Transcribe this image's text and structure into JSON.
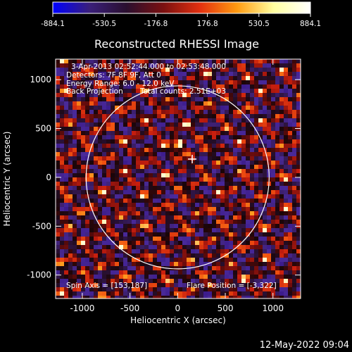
{
  "colorbar": {
    "ticks": [
      "-884.1",
      "-530.5",
      "-176.8",
      "176.8",
      "530.5",
      "884.1"
    ],
    "vmin": -884.1,
    "vmax": 884.1,
    "colors": [
      "#0000ff",
      "#3a1f7a",
      "#2a0f2f",
      "#7a1010",
      "#e23010",
      "#ff9a10",
      "#ffffa0",
      "#ffffff"
    ]
  },
  "chart_data": {
    "type": "heatmap",
    "title": "Reconstructed RHESSI Image",
    "xlabel": "Heliocentric X (arcsec)",
    "ylabel": "Heliocentric Y (arcsec)",
    "xlim": [
      -1280,
      1290
    ],
    "ylim": [
      -1240,
      1210
    ],
    "xticks": [
      -1000,
      -500,
      0,
      500,
      1000
    ],
    "yticks": [
      1000,
      500,
      0,
      -500,
      -1000
    ],
    "xtick_labels": [
      "-1000",
      "-500",
      "0",
      "500",
      "1000"
    ],
    "ytick_labels": [
      "1000",
      "500",
      "0",
      "-500",
      "-1000"
    ],
    "solar_limb_radius_arcsec": 960,
    "solar_limb_center": [
      0,
      0
    ],
    "flare_marker": [
      153,
      187
    ],
    "bright_source": [
      10,
      320
    ],
    "annotations": {
      "time": "3-Apr-2013 02:52:44.000 to 02:53:48.000",
      "detectors": "Detectors: 7F 8F 9F, Att 0",
      "energy": "Energy Range: 6.0 - 12.0 keV",
      "method": "Back Projection",
      "counts": "Total counts: 2.51E+03",
      "spin_axis": "Spin Axis = [153,187]",
      "flare_position": "Flare Position = [-3,322]"
    }
  },
  "timestamp": "12-May-2022 09:04"
}
